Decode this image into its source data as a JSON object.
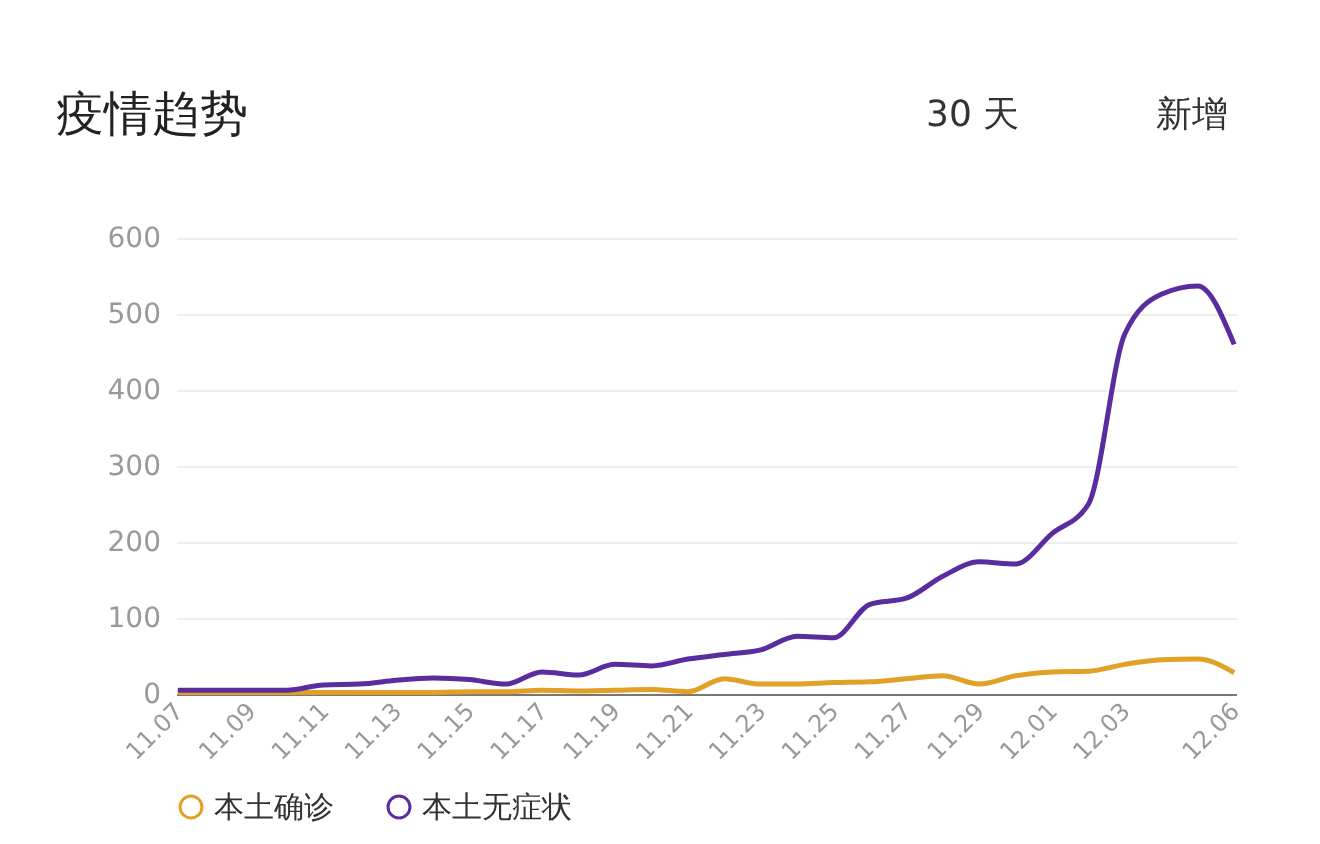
{
  "chart_data": {
    "type": "line",
    "title": "疫情趋势",
    "annotations": [
      "30 天",
      "新增"
    ],
    "categories": [
      "11.07",
      null,
      "11.09",
      null,
      "11.11",
      null,
      "11.13",
      null,
      "11.15",
      null,
      "11.17",
      null,
      "11.19",
      null,
      "11.21",
      null,
      "11.23",
      null,
      "11.25",
      null,
      "11.27",
      null,
      "11.29",
      null,
      "12.01",
      null,
      "12.03",
      null,
      null,
      "12.06"
    ],
    "series": [
      {
        "name": "本土确诊",
        "color": "#e0a126",
        "values": [
          2,
          2,
          2,
          2,
          2,
          2,
          2,
          2,
          3,
          3,
          5,
          4,
          5,
          6,
          3,
          20,
          13,
          13,
          15,
          16,
          20,
          24,
          13,
          24,
          29,
          30,
          39,
          45,
          46,
          28
        ]
      },
      {
        "name": "本土无症状",
        "color": "#5b2ca0",
        "values": [
          5,
          5,
          5,
          5,
          12,
          13,
          18,
          21,
          19,
          13,
          29,
          25,
          39,
          37,
          46,
          52,
          58,
          76,
          74,
          118,
          126,
          155,
          174,
          171,
          211,
          250,
          474,
          526,
          537,
          460
        ]
      }
    ],
    "ylim": [
      0,
      600
    ],
    "yticks": [
      0,
      100,
      200,
      300,
      400,
      500,
      600
    ],
    "grid": "y",
    "legend": "bottom",
    "marker": "none",
    "line_style": "solid"
  }
}
